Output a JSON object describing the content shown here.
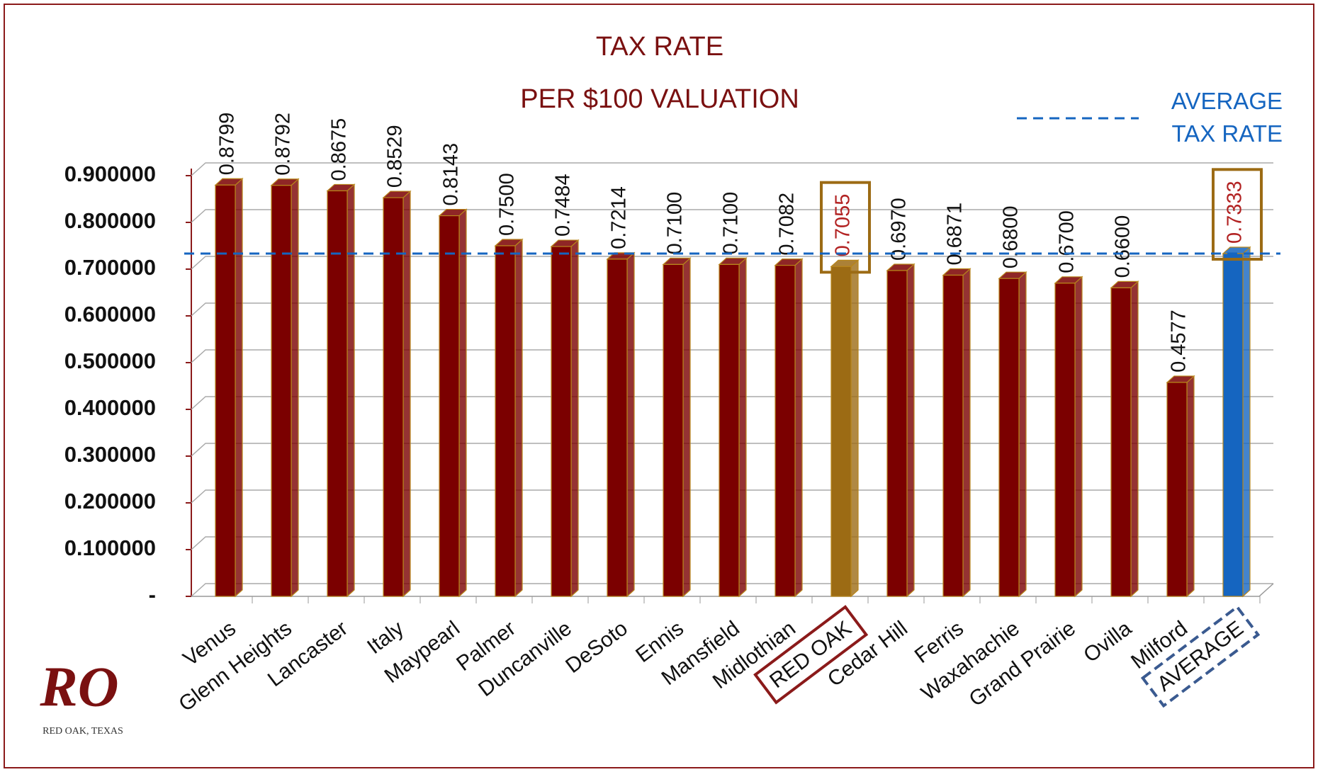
{
  "chart_data": {
    "type": "bar3d",
    "title": "TAX RATE",
    "subtitle": "PER $100 VALUATION",
    "categories": [
      "Venus",
      "Glenn Heights",
      "Lancaster",
      "Italy",
      "Maypearl",
      "Palmer",
      "Duncanville",
      "DeSoto",
      "Ennis",
      "Mansfield",
      "Midlothian",
      "RED OAK",
      "Cedar Hill",
      "Ferris",
      "Waxahachie",
      "Grand Prairie",
      "Ovilla",
      "Milford",
      "AVERAGE"
    ],
    "values": [
      0.8799,
      0.8792,
      0.8675,
      0.8529,
      0.8143,
      0.75,
      0.7484,
      0.7214,
      0.71,
      0.71,
      0.7082,
      0.7055,
      0.697,
      0.6871,
      0.68,
      0.67,
      0.66,
      0.4577,
      0.7333
    ],
    "value_labels": [
      "0.8799",
      "0.8792",
      "0.8675",
      "0.8529",
      "0.8143",
      "0.7500",
      "0.7484",
      "0.7214",
      "0.7100",
      "0.7100",
      "0.7082",
      "0.7055",
      "0.6970",
      "0.6871",
      "0.6800",
      "0.6700",
      "0.6600",
      "0.4577",
      "0.7333"
    ],
    "colors": [
      "#7b0000",
      "#7b0000",
      "#7b0000",
      "#7b0000",
      "#7b0000",
      "#7b0000",
      "#7b0000",
      "#7b0000",
      "#7b0000",
      "#7b0000",
      "#7b0000",
      "#9c6b14",
      "#7b0000",
      "#7b0000",
      "#7b0000",
      "#7b0000",
      "#7b0000",
      "#7b0000",
      "#1565c0"
    ],
    "label_boxes": [
      null,
      null,
      null,
      null,
      null,
      null,
      null,
      null,
      null,
      null,
      null,
      "#8b1a1a",
      null,
      null,
      null,
      null,
      null,
      null,
      "#3a5a90"
    ],
    "ylim": [
      0,
      0.9
    ],
    "yticks": [
      {
        "value": 0,
        "label": "-"
      },
      {
        "value": 0.1,
        "label": "0.100000"
      },
      {
        "value": 0.2,
        "label": "0.200000"
      },
      {
        "value": 0.3,
        "label": "0.300000"
      },
      {
        "value": 0.4,
        "label": "0.400000"
      },
      {
        "value": 0.5,
        "label": "0.500000"
      },
      {
        "value": 0.6,
        "label": "0.600000"
      },
      {
        "value": 0.7,
        "label": "0.700000"
      },
      {
        "value": 0.8,
        "label": "0.800000"
      },
      {
        "value": 0.9,
        "label": "0.900000"
      }
    ],
    "grid": true,
    "average_line": {
      "value": 0.7333,
      "label": "AVERAGE TAX RATE",
      "color": "#1565c0"
    },
    "logo": {
      "text": "RO",
      "caption": "RED OAK, TEXAS"
    }
  }
}
